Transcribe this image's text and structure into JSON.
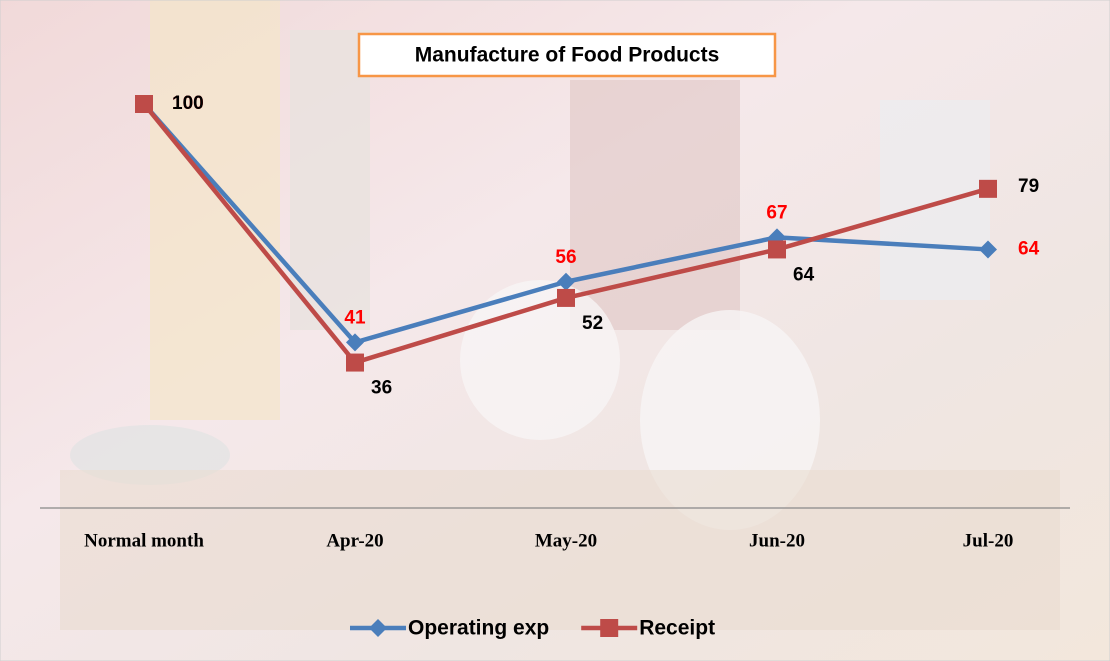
{
  "chart_data": {
    "type": "line",
    "title": "Manufacture of Food Products",
    "categories": [
      "Normal month",
      "Apr-20",
      "May-20",
      "Jun-20",
      "Jul-20"
    ],
    "series": [
      {
        "name": "Operating exp",
        "color": "#4a7ebb",
        "label_color": "#ff0000",
        "marker": "diamond",
        "values": [
          100,
          41,
          56,
          67,
          64
        ]
      },
      {
        "name": "Receipt",
        "color": "#be4b48",
        "label_color": "#000000",
        "marker": "square",
        "values": [
          100,
          36,
          52,
          64,
          79
        ]
      }
    ],
    "ylim": [
      0,
      100
    ],
    "legend": "bottom"
  }
}
